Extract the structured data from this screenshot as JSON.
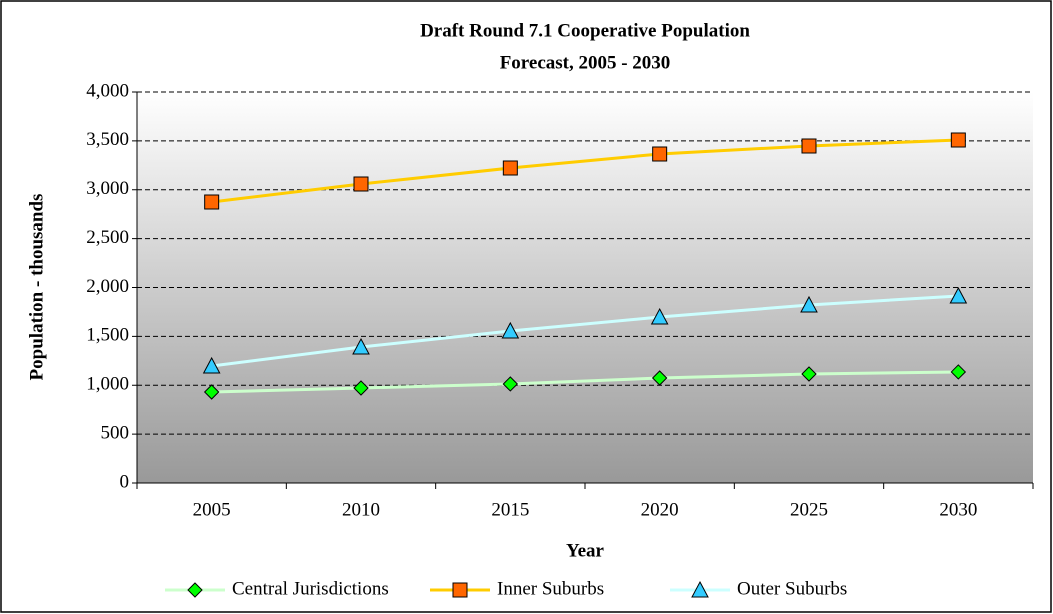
{
  "chart_data": {
    "type": "line",
    "title": [
      "Draft Round 7.1 Cooperative Population",
      "Forecast, 2005 - 2030"
    ],
    "x_label": "Year",
    "y_label": "Population - thousands",
    "categories": [
      "2005",
      "2010",
      "2015",
      "2020",
      "2025",
      "2030"
    ],
    "series": [
      {
        "name": "Central Jurisdictions",
        "color": "#ccffcc",
        "marker": "diamond",
        "marker_color": "#00ff00",
        "values": [
          931,
          972,
          1013,
          1074,
          1115,
          1136
        ]
      },
      {
        "name": "Inner Suburbs",
        "color": "#ffcc00",
        "marker": "square",
        "marker_color": "#ff6600",
        "values": [
          2875,
          3059,
          3222,
          3366,
          3448,
          3509
        ]
      },
      {
        "name": "Outer Suburbs",
        "color": "#ccffff",
        "marker": "triangle",
        "marker_color": "#33ccff",
        "values": [
          1197,
          1391,
          1555,
          1698,
          1821,
          1913
        ]
      }
    ],
    "ylim": [
      0,
      4000
    ],
    "yticks": [
      0,
      500,
      {
        "value": 1000,
        "label": "1,000"
      },
      {
        "value": 1500,
        "label": "1,500"
      },
      {
        "value": 2000,
        "label": "2,000"
      },
      {
        "value": 2500,
        "label": "2,500"
      },
      {
        "value": 3000,
        "label": "3,000"
      },
      {
        "value": 3500,
        "label": "3,500"
      },
      {
        "value": 4000,
        "label": "4,000"
      }
    ],
    "grid": true,
    "legend": "bottom"
  }
}
